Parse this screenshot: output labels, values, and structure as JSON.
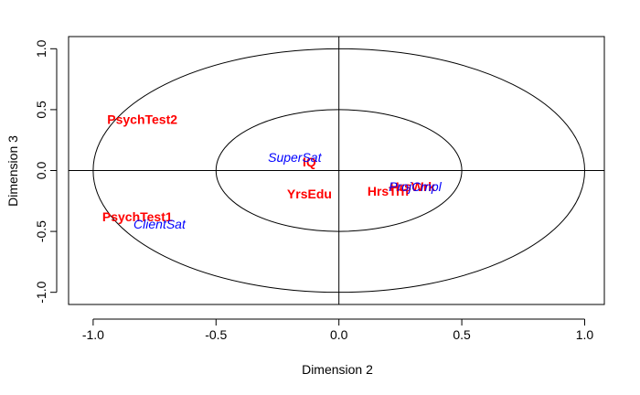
{
  "chart_data": {
    "type": "scatter",
    "title": "",
    "xlabel": "Dimension 2",
    "ylabel": "Dimension 3",
    "xlim": [
      -1.1,
      1.08
    ],
    "ylim": [
      -1.1,
      1.1
    ],
    "xticks": [
      -1.0,
      -0.5,
      0.0,
      0.5,
      1.0
    ],
    "xtick_labels": [
      "-1.0",
      "-0.5",
      "0.0",
      "0.5",
      "1.0"
    ],
    "yticks": [
      -1.0,
      -0.5,
      0.0,
      0.5,
      1.0
    ],
    "ytick_labels": [
      "-1.0",
      "-0.5",
      "0.0",
      "0.5",
      "1.0"
    ],
    "reference_lines": {
      "x": 0,
      "y": 0
    },
    "circles": [
      1.0,
      0.5
    ],
    "series": [
      {
        "color": "#ff0000",
        "style": "bold",
        "points": [
          {
            "label": "PsychTest2",
            "x": -0.8,
            "y": 0.42
          },
          {
            "label": "PsychTest1",
            "x": -0.82,
            "y": -0.38
          },
          {
            "label": "IQ",
            "x": -0.12,
            "y": 0.07
          },
          {
            "label": "YrsEdu",
            "x": -0.12,
            "y": -0.19
          },
          {
            "label": "HrsTrn",
            "x": 0.2,
            "y": -0.17
          },
          {
            "label": "HrsWrk",
            "x": 0.3,
            "y": -0.13
          }
        ]
      },
      {
        "color": "#0000ff",
        "style": "italic",
        "points": [
          {
            "label": "SuperSat",
            "x": -0.18,
            "y": 0.11
          },
          {
            "label": "ClientSat",
            "x": -0.73,
            "y": -0.44
          },
          {
            "label": "ProjCmpl",
            "x": 0.31,
            "y": -0.13
          }
        ]
      }
    ]
  }
}
